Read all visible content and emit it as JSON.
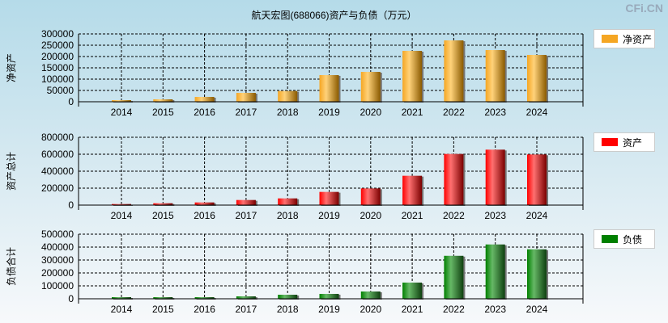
{
  "title": "航天宏图(688066)资产与负债（万元）",
  "brand": "CFi.CN",
  "chart_data": [
    {
      "type": "bar",
      "ylabel": "净资产",
      "legend": "净资产",
      "color": "#f5a623",
      "categories": [
        "2014",
        "2015",
        "2016",
        "2017",
        "2018",
        "2019",
        "2020",
        "2021",
        "2022",
        "2023",
        "2024"
      ],
      "values": [
        7000,
        10700,
        21400,
        39300,
        47600,
        117900,
        132100,
        225000,
        271400,
        228600,
        207100
      ],
      "ylim": [
        0,
        300000
      ],
      "yticks": [
        "0",
        "50000",
        "100000",
        "150000",
        "200000",
        "250000",
        "300000"
      ],
      "grid": true,
      "legend_position": "right"
    },
    {
      "type": "bar",
      "ylabel": "资产总计",
      "legend": "资产",
      "color": "#ff0000",
      "categories": [
        "2014",
        "2015",
        "2016",
        "2017",
        "2018",
        "2019",
        "2020",
        "2021",
        "2022",
        "2023",
        "2024"
      ],
      "values": [
        12700,
        22000,
        31700,
        60300,
        79400,
        155600,
        196800,
        346000,
        603000,
        654000,
        597000
      ],
      "ylim": [
        0,
        800000
      ],
      "yticks": [
        "0",
        "200000",
        "400000",
        "600000",
        "800000"
      ],
      "grid": true,
      "legend_position": "right"
    },
    {
      "type": "bar",
      "ylabel": "负债合计",
      "legend": "负债",
      "color": "#008000",
      "categories": [
        "2014",
        "2015",
        "2016",
        "2017",
        "2018",
        "2019",
        "2020",
        "2021",
        "2022",
        "2023",
        "2024"
      ],
      "values": [
        12500,
        12500,
        12500,
        18800,
        31400,
        37700,
        56500,
        125500,
        332600,
        420500,
        382800
      ],
      "ylim": [
        0,
        500000
      ],
      "yticks": [
        "0",
        "100000",
        "200000",
        "300000",
        "400000",
        "500000"
      ],
      "grid": true,
      "legend_position": "right"
    }
  ]
}
